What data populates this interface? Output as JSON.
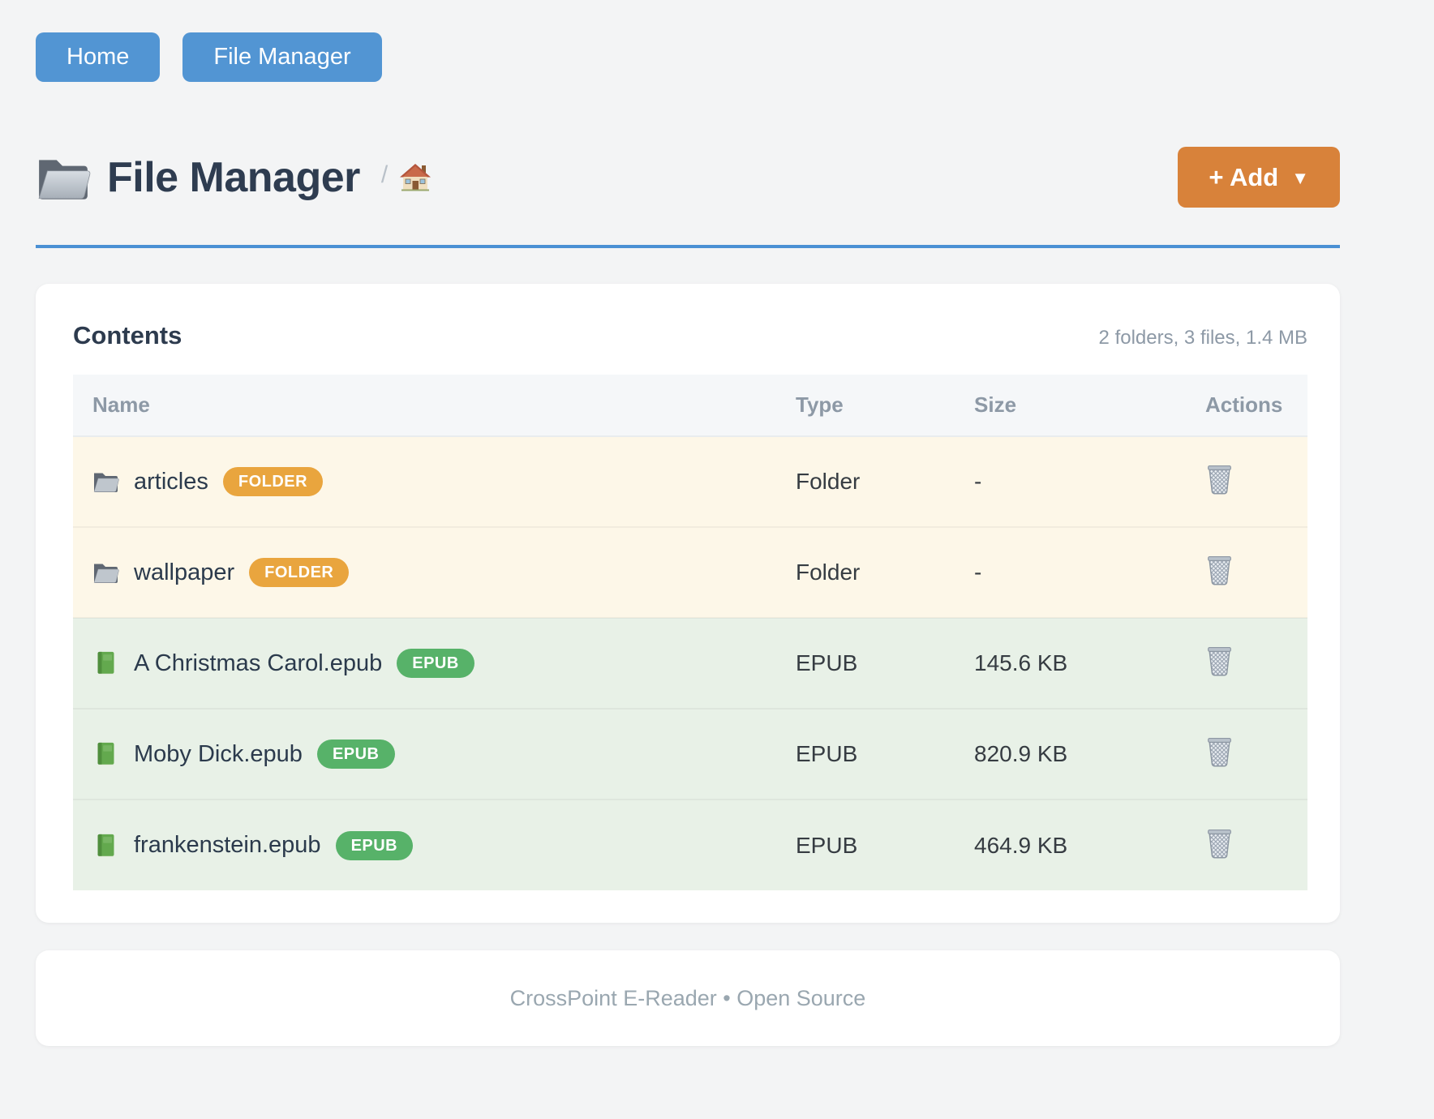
{
  "colors": {
    "accent_blue": "#5295d3",
    "accent_orange": "#d8823a",
    "badge_folder": "#e9a53e",
    "badge_epub": "#57b269",
    "row_folder_bg": "#fdf7e8",
    "row_epub_bg": "#e8f1e7",
    "rule_blue": "#4a90d4"
  },
  "nav": {
    "home_label": "Home",
    "file_manager_label": "File Manager"
  },
  "header": {
    "title": "File Manager",
    "breadcrumb_separator": "/",
    "breadcrumb_home_icon": "home-icon",
    "title_icon": "folder-icon",
    "add_button_label": "+ Add",
    "add_button_caret": "▼"
  },
  "contents": {
    "title": "Contents",
    "summary": "2 folders, 3 files, 1.4 MB",
    "columns": [
      "Name",
      "Type",
      "Size",
      "Actions"
    ],
    "rows": [
      {
        "name": "articles",
        "badge": "FOLDER",
        "type": "Folder",
        "size": "-",
        "kind": "folder",
        "icon": "folder-icon",
        "action_icon": "trash-icon"
      },
      {
        "name": "wallpaper",
        "badge": "FOLDER",
        "type": "Folder",
        "size": "-",
        "kind": "folder",
        "icon": "folder-icon",
        "action_icon": "trash-icon"
      },
      {
        "name": "A Christmas Carol.epub",
        "badge": "EPUB",
        "type": "EPUB",
        "size": "145.6 KB",
        "kind": "epub",
        "icon": "green-book-icon",
        "action_icon": "trash-icon"
      },
      {
        "name": "Moby Dick.epub",
        "badge": "EPUB",
        "type": "EPUB",
        "size": "820.9 KB",
        "kind": "epub",
        "icon": "green-book-icon",
        "action_icon": "trash-icon"
      },
      {
        "name": "frankenstein.epub",
        "badge": "EPUB",
        "type": "EPUB",
        "size": "464.9 KB",
        "kind": "epub",
        "icon": "green-book-icon",
        "action_icon": "trash-icon"
      }
    ]
  },
  "footer": {
    "text": "CrossPoint E-Reader • Open Source"
  }
}
